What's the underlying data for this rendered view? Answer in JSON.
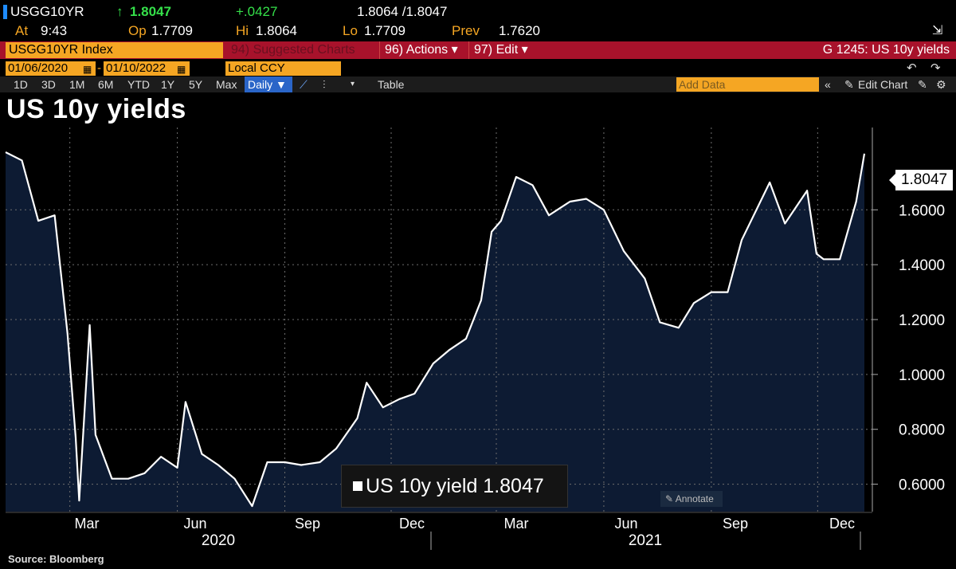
{
  "quote": {
    "ticker": "USGG10YR",
    "last_arrow": "↑",
    "last": "1.8047",
    "change": "+.0427",
    "bid_ask": "1.8064 /1.8047"
  },
  "stats": {
    "at_label": "At",
    "at_value": "9:43",
    "op_label": "Op",
    "op_value": "1.7709",
    "hi_label": "Hi",
    "hi_value": "1.8064",
    "lo_label": "Lo",
    "lo_value": "1.7709",
    "prev_label": "Prev",
    "prev_value": "1.7620"
  },
  "command": {
    "security": "USGG10YR Index",
    "suggested": "94) Suggested Charts",
    "actions": "96) Actions ▾",
    "edit": "97) Edit ▾",
    "chart_id": "G 1245: US 10y yields"
  },
  "dates": {
    "start": "01/06/2020",
    "end": "01/10/2022",
    "currency": "Local CCY"
  },
  "toolbar": {
    "ranges": [
      "1D",
      "3D",
      "1M",
      "6M",
      "YTD",
      "1Y",
      "5Y",
      "Max"
    ],
    "frequency": "Daily ▼",
    "table": "Table",
    "add_data_placeholder": "Add Data",
    "edit_chart": "Edit Chart"
  },
  "title": "US 10y yields",
  "legend": "US 10y yield 1.8047",
  "annotate": "Annotate",
  "source": "Source: Bloomberg",
  "colors": {
    "accent": "#f5a623",
    "command_bar": "#a8122b",
    "area": "#0d1b33",
    "line": "#ffffff",
    "up": "#35e04a"
  },
  "chart_data": {
    "type": "area",
    "title": "US 10y yields",
    "series": [
      {
        "name": "US 10y yield",
        "x": [
          "2020-01-06",
          "2020-01-20",
          "2020-02-03",
          "2020-02-17",
          "2020-02-28",
          "2020-03-06",
          "2020-03-09",
          "2020-03-18",
          "2020-03-23",
          "2020-04-06",
          "2020-04-20",
          "2020-05-04",
          "2020-05-18",
          "2020-06-01",
          "2020-06-08",
          "2020-06-22",
          "2020-07-06",
          "2020-07-20",
          "2020-08-04",
          "2020-08-17",
          "2020-09-01",
          "2020-09-15",
          "2020-10-01",
          "2020-10-15",
          "2020-11-02",
          "2020-11-10",
          "2020-11-24",
          "2020-12-08",
          "2020-12-21",
          "2021-01-06",
          "2021-01-20",
          "2021-02-03",
          "2021-02-16",
          "2021-02-25",
          "2021-03-05",
          "2021-03-18",
          "2021-04-01",
          "2021-04-15",
          "2021-05-03",
          "2021-05-17",
          "2021-06-01",
          "2021-06-18",
          "2021-07-06",
          "2021-07-19",
          "2021-08-04",
          "2021-08-17",
          "2021-09-01",
          "2021-09-15",
          "2021-09-27",
          "2021-10-21",
          "2021-11-03",
          "2021-11-22",
          "2021-11-30",
          "2021-12-06",
          "2021-12-20",
          "2022-01-03",
          "2022-01-10"
        ],
        "values": [
          1.81,
          1.78,
          1.56,
          1.58,
          1.15,
          0.77,
          0.54,
          1.18,
          0.78,
          0.62,
          0.62,
          0.64,
          0.7,
          0.66,
          0.9,
          0.71,
          0.67,
          0.62,
          0.52,
          0.68,
          0.68,
          0.67,
          0.68,
          0.73,
          0.84,
          0.97,
          0.88,
          0.91,
          0.93,
          1.04,
          1.09,
          1.13,
          1.27,
          1.52,
          1.56,
          1.72,
          1.69,
          1.58,
          1.63,
          1.64,
          1.6,
          1.45,
          1.35,
          1.19,
          1.17,
          1.26,
          1.3,
          1.3,
          1.49,
          1.7,
          1.55,
          1.67,
          1.44,
          1.42,
          1.42,
          1.63,
          1.8047
        ]
      }
    ],
    "xlabel": "",
    "ylabel": "",
    "ylim": [
      0.5,
      1.9
    ],
    "y_ticks": [
      "0.6000",
      "0.8000",
      "1.0000",
      "1.2000",
      "1.4000",
      "1.6000"
    ],
    "x_ticks": [
      "Mar",
      "Jun",
      "Sep",
      "Dec",
      "Mar",
      "Jun",
      "Sep",
      "Dec"
    ],
    "x_years": [
      "2020",
      "2021"
    ],
    "last_value_tag": "1.8047",
    "grid": true,
    "legend_position": "bottom-center"
  }
}
